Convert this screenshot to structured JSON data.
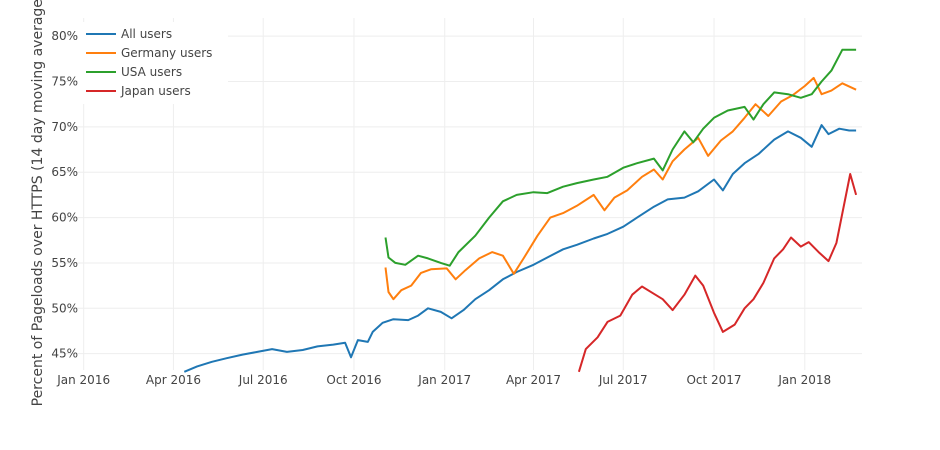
{
  "chart_data": {
    "type": "line",
    "title": "",
    "xlabel": "",
    "ylabel": "Percent of Pageloads over HTTPS (14 day moving average)",
    "x_ticks": [
      "Jan 2016",
      "Apr 2016",
      "Jul 2016",
      "Oct 2016",
      "Jan 2017",
      "Apr 2017",
      "Jul 2017",
      "Oct 2017",
      "Jan 2018"
    ],
    "y_ticks": [
      "45%",
      "50%",
      "55%",
      "60%",
      "65%",
      "70%",
      "75%",
      "80%"
    ],
    "ylim": [
      43.2,
      82
    ],
    "xlim": [
      "2015-12-08",
      "2018-02-28"
    ],
    "grid": true,
    "legend_position": "top-left",
    "series": [
      {
        "name": "All users",
        "color": "#1f77b4",
        "points": [
          [
            "2016-04-12",
            43.0
          ],
          [
            "2016-04-25",
            43.6
          ],
          [
            "2016-05-10",
            44.1
          ],
          [
            "2016-05-25",
            44.5
          ],
          [
            "2016-06-10",
            44.9
          ],
          [
            "2016-06-25",
            45.2
          ],
          [
            "2016-07-10",
            45.5
          ],
          [
            "2016-07-25",
            45.2
          ],
          [
            "2016-08-10",
            45.4
          ],
          [
            "2016-08-25",
            45.8
          ],
          [
            "2016-09-10",
            46.0
          ],
          [
            "2016-09-22",
            46.2
          ],
          [
            "2016-09-28",
            44.6
          ],
          [
            "2016-10-05",
            46.5
          ],
          [
            "2016-10-15",
            46.3
          ],
          [
            "2016-10-20",
            47.4
          ],
          [
            "2016-10-30",
            48.4
          ],
          [
            "2016-11-10",
            48.8
          ],
          [
            "2016-11-25",
            48.7
          ],
          [
            "2016-12-05",
            49.2
          ],
          [
            "2016-12-15",
            50.0
          ],
          [
            "2016-12-28",
            49.6
          ],
          [
            "2017-01-08",
            48.9
          ],
          [
            "2017-01-20",
            49.8
          ],
          [
            "2017-02-01",
            51.0
          ],
          [
            "2017-02-15",
            52.0
          ],
          [
            "2017-03-01",
            53.2
          ],
          [
            "2017-03-15",
            54.0
          ],
          [
            "2017-04-01",
            54.8
          ],
          [
            "2017-04-15",
            55.6
          ],
          [
            "2017-05-01",
            56.5
          ],
          [
            "2017-05-15",
            57.0
          ],
          [
            "2017-06-01",
            57.7
          ],
          [
            "2017-06-15",
            58.2
          ],
          [
            "2017-07-01",
            59.0
          ],
          [
            "2017-07-15",
            60.0
          ],
          [
            "2017-08-01",
            61.2
          ],
          [
            "2017-08-15",
            62.0
          ],
          [
            "2017-09-01",
            62.2
          ],
          [
            "2017-09-15",
            62.9
          ],
          [
            "2017-10-01",
            64.2
          ],
          [
            "2017-10-10",
            63.0
          ],
          [
            "2017-10-20",
            64.8
          ],
          [
            "2017-11-01",
            66.0
          ],
          [
            "2017-11-15",
            67.0
          ],
          [
            "2017-12-01",
            68.6
          ],
          [
            "2017-12-15",
            69.5
          ],
          [
            "2017-12-28",
            68.8
          ],
          [
            "2018-01-08",
            67.8
          ],
          [
            "2018-01-18",
            70.2
          ],
          [
            "2018-01-25",
            69.2
          ],
          [
            "2018-02-05",
            69.8
          ],
          [
            "2018-02-15",
            69.6
          ],
          [
            "2018-02-22",
            69.6
          ]
        ]
      },
      {
        "name": "Germany users",
        "color": "#ff7f0e",
        "points": [
          [
            "2016-11-02",
            54.5
          ],
          [
            "2016-11-05",
            51.8
          ],
          [
            "2016-11-10",
            51.0
          ],
          [
            "2016-11-18",
            52.0
          ],
          [
            "2016-11-28",
            52.5
          ],
          [
            "2016-12-08",
            53.9
          ],
          [
            "2016-12-18",
            54.3
          ],
          [
            "2017-01-03",
            54.4
          ],
          [
            "2017-01-12",
            53.2
          ],
          [
            "2017-01-22",
            54.2
          ],
          [
            "2017-02-05",
            55.5
          ],
          [
            "2017-02-18",
            56.2
          ],
          [
            "2017-03-01",
            55.8
          ],
          [
            "2017-03-12",
            53.8
          ],
          [
            "2017-03-22",
            55.5
          ],
          [
            "2017-04-05",
            58.0
          ],
          [
            "2017-04-18",
            60.0
          ],
          [
            "2017-05-01",
            60.5
          ],
          [
            "2017-05-15",
            61.3
          ],
          [
            "2017-06-01",
            62.5
          ],
          [
            "2017-06-12",
            60.8
          ],
          [
            "2017-06-22",
            62.2
          ],
          [
            "2017-07-05",
            63.0
          ],
          [
            "2017-07-20",
            64.5
          ],
          [
            "2017-08-01",
            65.3
          ],
          [
            "2017-08-10",
            64.2
          ],
          [
            "2017-08-20",
            66.2
          ],
          [
            "2017-09-01",
            67.5
          ],
          [
            "2017-09-15",
            68.8
          ],
          [
            "2017-09-25",
            66.8
          ],
          [
            "2017-10-08",
            68.5
          ],
          [
            "2017-10-20",
            69.5
          ],
          [
            "2017-11-01",
            71.0
          ],
          [
            "2017-11-12",
            72.5
          ],
          [
            "2017-11-25",
            71.2
          ],
          [
            "2017-12-08",
            72.8
          ],
          [
            "2017-12-20",
            73.5
          ],
          [
            "2018-01-01",
            74.5
          ],
          [
            "2018-01-10",
            75.4
          ],
          [
            "2018-01-18",
            73.6
          ],
          [
            "2018-01-28",
            74.0
          ],
          [
            "2018-02-08",
            74.8
          ],
          [
            "2018-02-22",
            74.1
          ]
        ]
      },
      {
        "name": "USA users",
        "color": "#2ca02c",
        "points": [
          [
            "2016-11-02",
            57.8
          ],
          [
            "2016-11-05",
            55.6
          ],
          [
            "2016-11-12",
            55.0
          ],
          [
            "2016-11-22",
            54.8
          ],
          [
            "2016-12-05",
            55.8
          ],
          [
            "2016-12-15",
            55.5
          ],
          [
            "2016-12-28",
            55.0
          ],
          [
            "2017-01-06",
            54.7
          ],
          [
            "2017-01-15",
            56.2
          ],
          [
            "2017-02-01",
            58.0
          ],
          [
            "2017-02-15",
            60.0
          ],
          [
            "2017-03-01",
            61.8
          ],
          [
            "2017-03-15",
            62.5
          ],
          [
            "2017-04-01",
            62.8
          ],
          [
            "2017-04-15",
            62.7
          ],
          [
            "2017-05-01",
            63.4
          ],
          [
            "2017-05-15",
            63.8
          ],
          [
            "2017-06-01",
            64.2
          ],
          [
            "2017-06-15",
            64.5
          ],
          [
            "2017-07-01",
            65.5
          ],
          [
            "2017-07-15",
            66.0
          ],
          [
            "2017-08-01",
            66.5
          ],
          [
            "2017-08-10",
            65.2
          ],
          [
            "2017-08-20",
            67.5
          ],
          [
            "2017-09-01",
            69.5
          ],
          [
            "2017-09-10",
            68.3
          ],
          [
            "2017-09-20",
            69.8
          ],
          [
            "2017-10-01",
            71.0
          ],
          [
            "2017-10-15",
            71.8
          ],
          [
            "2017-11-01",
            72.2
          ],
          [
            "2017-11-10",
            70.8
          ],
          [
            "2017-11-20",
            72.5
          ],
          [
            "2017-12-01",
            73.8
          ],
          [
            "2017-12-15",
            73.6
          ],
          [
            "2017-12-28",
            73.2
          ],
          [
            "2018-01-08",
            73.6
          ],
          [
            "2018-01-18",
            75.0
          ],
          [
            "2018-01-28",
            76.2
          ],
          [
            "2018-02-08",
            78.5
          ],
          [
            "2018-02-22",
            78.5
          ]
        ]
      },
      {
        "name": "Japan users",
        "color": "#d62728",
        "points": [
          [
            "2017-05-17",
            43.0
          ],
          [
            "2017-05-24",
            45.5
          ],
          [
            "2017-06-05",
            46.8
          ],
          [
            "2017-06-15",
            48.5
          ],
          [
            "2017-06-28",
            49.2
          ],
          [
            "2017-07-10",
            51.5
          ],
          [
            "2017-07-20",
            52.4
          ],
          [
            "2017-08-01",
            51.6
          ],
          [
            "2017-08-10",
            51.0
          ],
          [
            "2017-08-20",
            49.8
          ],
          [
            "2017-09-01",
            51.5
          ],
          [
            "2017-09-12",
            53.6
          ],
          [
            "2017-09-20",
            52.5
          ],
          [
            "2017-10-01",
            49.5
          ],
          [
            "2017-10-10",
            47.4
          ],
          [
            "2017-10-22",
            48.2
          ],
          [
            "2017-11-01",
            50.0
          ],
          [
            "2017-11-10",
            51.0
          ],
          [
            "2017-11-20",
            52.8
          ],
          [
            "2017-12-01",
            55.5
          ],
          [
            "2017-12-10",
            56.5
          ],
          [
            "2017-12-18",
            57.8
          ],
          [
            "2017-12-28",
            56.8
          ],
          [
            "2018-01-05",
            57.3
          ],
          [
            "2018-01-15",
            56.2
          ],
          [
            "2018-01-25",
            55.2
          ],
          [
            "2018-02-02",
            57.2
          ],
          [
            "2018-02-10",
            61.5
          ],
          [
            "2018-02-16",
            64.8
          ],
          [
            "2018-02-22",
            62.5
          ]
        ]
      }
    ]
  }
}
